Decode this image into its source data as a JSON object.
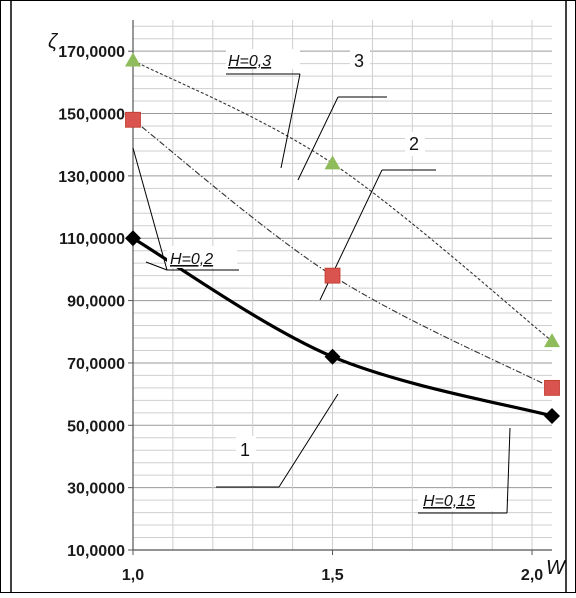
{
  "chart_data": {
    "type": "line",
    "ylabel": "ζ",
    "xlabel": "W",
    "xlim": [
      1.0,
      2.05
    ],
    "ylim": [
      10,
      180
    ],
    "x_ticks": [
      "1,0",
      "1,5",
      "2,0"
    ],
    "y_ticks": [
      "10,0000",
      "30,0000",
      "50,0000",
      "70,0000",
      "90,0000",
      "110,0000",
      "130,0000",
      "150,0000",
      "170,0000"
    ],
    "grid": true,
    "series": [
      {
        "name": "1",
        "style": "solid-thick",
        "color": "#000000",
        "marker": "diamond",
        "marker_color": "#000000",
        "points": [
          [
            1.0,
            110
          ],
          [
            1.5,
            72
          ],
          [
            2.05,
            53
          ]
        ]
      },
      {
        "name": "2",
        "style": "dash-dot",
        "color": "#333333",
        "marker": "square",
        "marker_color": "#d9534f",
        "points": [
          [
            1.0,
            148
          ],
          [
            1.5,
            98
          ],
          [
            2.05,
            62
          ]
        ]
      },
      {
        "name": "3",
        "style": "dashed",
        "color": "#333333",
        "marker": "triangle",
        "marker_color": "#8fbc5a",
        "points": [
          [
            1.0,
            167
          ],
          [
            1.5,
            134
          ],
          [
            2.05,
            77
          ]
        ]
      }
    ],
    "annotations": {
      "h03": "H=0,3",
      "h02": "H=0,2",
      "h015": "H=0,15",
      "n1": "1",
      "n2": "2",
      "n3": "3"
    }
  }
}
